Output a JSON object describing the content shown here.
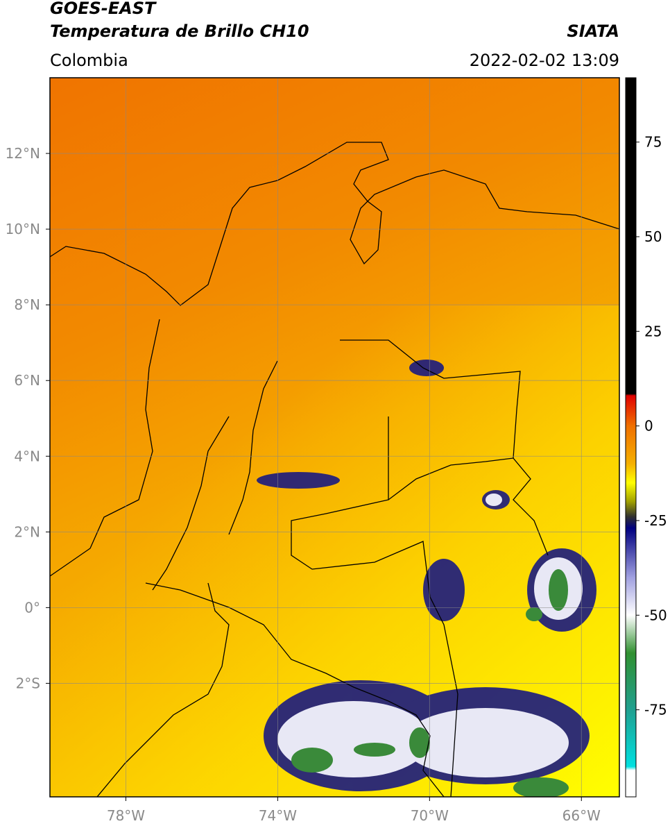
{
  "map": {
    "title_line1": "GOES-EAST",
    "title_line2": "Temperatura de Brillo CH10",
    "agency": "SIATA",
    "region": "Colombia",
    "timestamp": "2022-02-02 13:09",
    "lon_lim": [
      -80,
      -65
    ],
    "lat_lim": [
      -5,
      14
    ],
    "lon_ticks": [
      {
        "value": -78,
        "label": "78°W"
      },
      {
        "value": -74,
        "label": "74°W"
      },
      {
        "value": -70,
        "label": "70°W"
      },
      {
        "value": -66,
        "label": "66°W"
      }
    ],
    "lat_ticks": [
      {
        "value": 12,
        "label": "12°N"
      },
      {
        "value": 10,
        "label": "10°N"
      },
      {
        "value": 8,
        "label": "8°N"
      },
      {
        "value": 6,
        "label": "6°N"
      },
      {
        "value": 4,
        "label": "4°N"
      },
      {
        "value": 2,
        "label": "2°N"
      },
      {
        "value": 0,
        "label": "0°"
      },
      {
        "value": -2,
        "label": "2°S"
      }
    ],
    "grid": true,
    "colorbar": {
      "lim": [
        -98,
        92
      ],
      "ticks": [
        -75,
        -50,
        -25,
        0,
        25,
        50,
        75
      ],
      "colors": [
        {
          "value": 92,
          "color": "#000000"
        },
        {
          "value": 8.5,
          "color": "#000000"
        },
        {
          "value": 8,
          "color": "#e00000"
        },
        {
          "value": 0,
          "color": "#f07000"
        },
        {
          "value": -10,
          "color": "#f5b000"
        },
        {
          "value": -15,
          "color": "#ffff00"
        },
        {
          "value": -20,
          "color": "#a0a000"
        },
        {
          "value": -24,
          "color": "#303030"
        },
        {
          "value": -27,
          "color": "#000080"
        },
        {
          "value": -40,
          "color": "#a0a0e0"
        },
        {
          "value": -50,
          "color": "#ffffff"
        },
        {
          "value": -60,
          "color": "#309030"
        },
        {
          "value": -75,
          "color": "#20a090"
        },
        {
          "value": -90,
          "color": "#00e0e0"
        },
        {
          "value": -91,
          "color": "#ffffff"
        },
        {
          "value": -98,
          "color": "#ffffff"
        }
      ]
    }
  }
}
